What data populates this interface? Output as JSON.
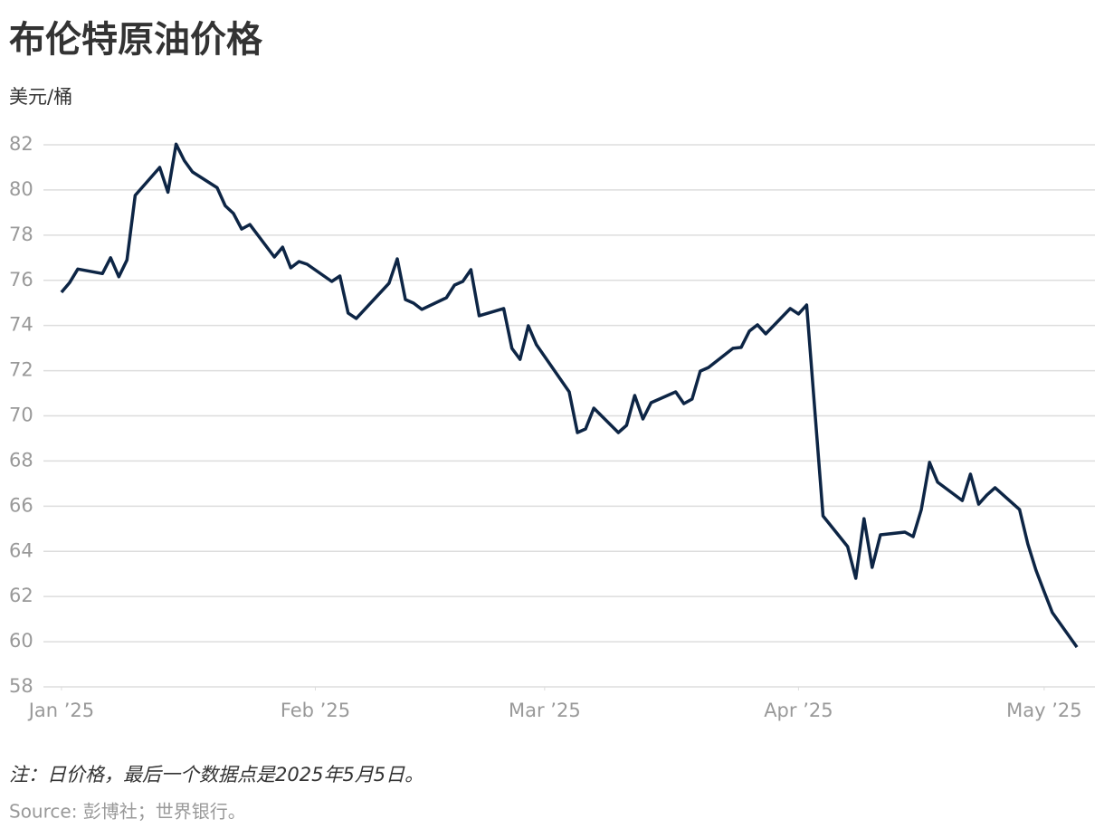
{
  "chart_data": {
    "type": "line",
    "title": "布伦特原油价格",
    "subtitle": "美元/桶",
    "note": "注：日价格，最后一个数据点是2025年5月5日。",
    "source": "Source: 彭博社；世界银行。",
    "x": [
      1,
      2,
      3,
      6,
      7,
      8,
      9,
      10,
      13,
      14,
      15,
      16,
      17,
      20,
      21,
      22,
      23,
      24,
      27,
      28,
      29,
      30,
      31,
      34,
      35,
      36,
      37,
      41,
      42,
      43,
      44,
      45,
      48,
      49,
      50,
      51,
      52,
      55,
      56,
      57,
      58,
      59,
      63,
      64,
      65,
      66,
      69,
      70,
      71,
      72,
      73,
      76,
      77,
      78,
      79,
      80,
      83,
      84,
      85,
      86,
      87,
      90,
      91,
      92,
      94,
      97,
      98,
      99,
      100,
      101,
      104,
      105,
      106,
      107,
      108,
      111,
      112,
      113,
      114,
      115,
      118,
      119,
      120,
      121,
      122,
      125
    ],
    "series": [
      {
        "name": "布伦特原油价格",
        "color": "#0d2545",
        "values": [
          75.47,
          75.9,
          76.5,
          76.3,
          77.0,
          76.16,
          76.9,
          79.76,
          81.0,
          79.9,
          82.03,
          81.3,
          80.8,
          80.1,
          79.3,
          78.96,
          78.27,
          78.47,
          77.03,
          77.47,
          76.55,
          76.83,
          76.71,
          75.95,
          76.19,
          74.55,
          74.31,
          75.87,
          76.95,
          75.15,
          74.99,
          74.71,
          75.23,
          75.79,
          75.95,
          76.47,
          74.43,
          74.75,
          72.99,
          72.5,
          73.99,
          73.15,
          71.06,
          69.26,
          69.42,
          70.34,
          69.26,
          69.58,
          70.9,
          69.86,
          70.58,
          71.06,
          70.54,
          70.74,
          71.98,
          72.14,
          72.99,
          73.03,
          73.75,
          74.03,
          73.63,
          74.75,
          74.51,
          74.91,
          65.57,
          64.21,
          62.81,
          65.45,
          63.29,
          64.73,
          64.85,
          64.65,
          65.85,
          67.94,
          67.06,
          66.25,
          67.42,
          66.09,
          66.49,
          66.82,
          65.85,
          64.33,
          63.17,
          62.21,
          61.29,
          59.76
        ]
      }
    ],
    "xlim": [
      -5.4,
      127.2
    ],
    "ylim": [
      58,
      82
    ],
    "xticks": [
      {
        "value": 1,
        "label": "Jan ’25"
      },
      {
        "value": 32,
        "label": "Feb ’25"
      },
      {
        "value": 60,
        "label": "Mar ’25"
      },
      {
        "value": 91,
        "label": "Apr ’25"
      },
      {
        "value": 121,
        "label": "May ’25"
      }
    ],
    "yticks": [
      58,
      60,
      62,
      64,
      66,
      68,
      70,
      72,
      74,
      76,
      78,
      80,
      82
    ],
    "grid": true
  }
}
